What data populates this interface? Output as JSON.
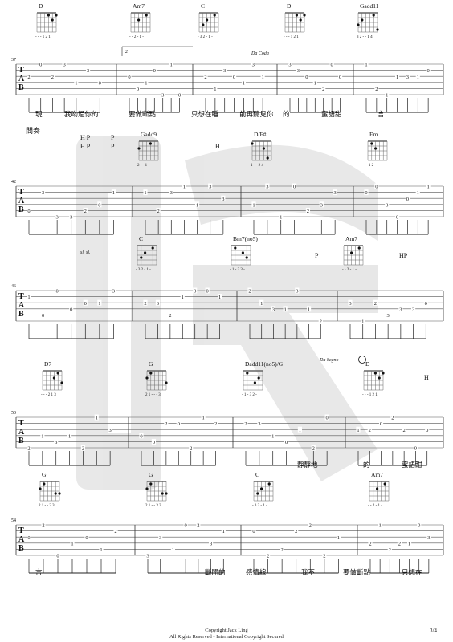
{
  "footer": {
    "copyright": "Copyright Jack Ling",
    "rights": "All Rights Reserved - International Copyright Secured",
    "page_number": "3/4"
  },
  "systems": [
    {
      "measure_number": "37",
      "section_label": "",
      "chords": [
        {
          "name": "D",
          "fingering": "- - - 1 2 1"
        },
        {
          "name": "Am7",
          "fingering": "- - 2 - 1 -"
        },
        {
          "name": "C",
          "fingering": "- 3 2 - 1 -"
        },
        {
          "name": "D",
          "fingering": "- - - 1 2 1"
        },
        {
          "name": "Gadd11",
          "fingering": "3 2 - - 1 4"
        }
      ],
      "annotations": [
        "Da Coda",
        "2"
      ],
      "techniques": [],
      "lyrics": [
        "現",
        "我吻過你的",
        "要做斷點",
        "只想在睡",
        "前再聽見你",
        "的",
        "蜜語甜",
        "言"
      ]
    },
    {
      "measure_number": "42",
      "section_label": "間奏",
      "chords": [
        {
          "name": "Gadd9",
          "fingering": "2 - - 1 - -"
        },
        {
          "name": "D/F#",
          "fingering": "1 - - 2 4 -"
        },
        {
          "name": "Em",
          "fingering": "- 1 2 - - -"
        }
      ],
      "annotations": [],
      "techniques": [
        "H P",
        "H P",
        "P",
        "P",
        "H"
      ],
      "lyrics": []
    },
    {
      "measure_number": "46",
      "section_label": "",
      "chords": [
        {
          "name": "C",
          "fingering": "- 3 2 - 1 -"
        },
        {
          "name": "Bm7(no5)",
          "fingering": "- 1 - 2 3 -"
        },
        {
          "name": "Am7",
          "fingering": "- - 2 - 1 -"
        }
      ],
      "annotations": [
        "sl. sl."
      ],
      "techniques": [
        "P",
        "HP"
      ],
      "lyrics": []
    },
    {
      "measure_number": "50",
      "section_label": "",
      "chords": [
        {
          "name": "D7",
          "fingering": "- - - 2 1 3"
        },
        {
          "name": "G",
          "fingering": "2 1 - - - 3"
        },
        {
          "name": "Dadd11(no5)/G",
          "fingering": "- 1 - 3 2 -"
        },
        {
          "name": "D",
          "fingering": "- - - 1 2 1"
        }
      ],
      "annotations": [
        "Da Segno"
      ],
      "techniques": [
        "H"
      ],
      "lyrics": [
        "靜靜地",
        "的",
        "蜜語甜"
      ]
    },
    {
      "measure_number": "54",
      "section_label": "",
      "chords": [
        {
          "name": "G",
          "fingering": "2 1 - - 3 3"
        },
        {
          "name": "G",
          "fingering": "2 1 - - 3 3"
        },
        {
          "name": "C",
          "fingering": "- 3 2 - 1 -"
        },
        {
          "name": "Am7",
          "fingering": "- - 2 - 1 -"
        }
      ],
      "annotations": [],
      "techniques": [],
      "lyrics": [
        "言",
        "斷開的",
        "感情線",
        "我不",
        "要做斷點",
        "只想在"
      ]
    }
  ]
}
